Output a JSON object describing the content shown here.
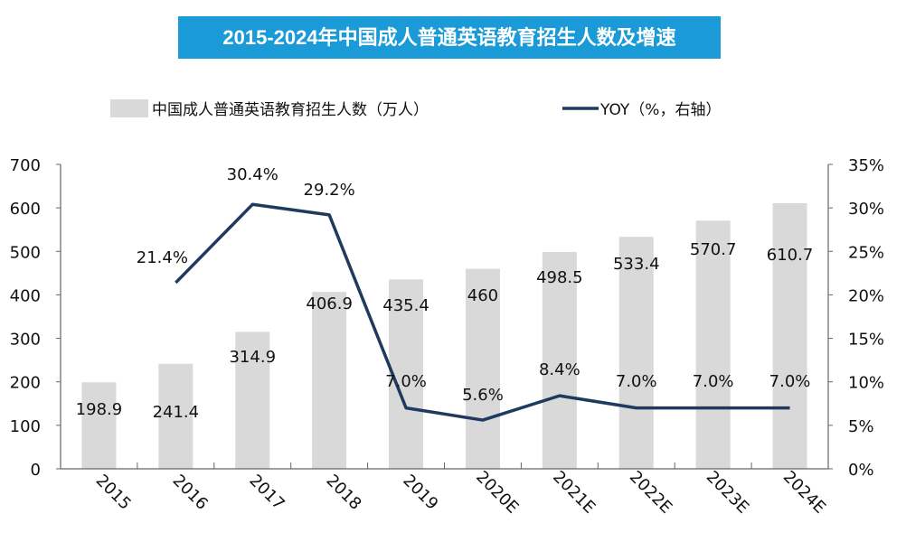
{
  "chart_data": {
    "type": "bar+line",
    "title": "2015-2024年中国成人普通英语教育招生人数及增速",
    "categories": [
      "2015",
      "2016",
      "2017",
      "2018",
      "2019",
      "2020E",
      "2021E",
      "2022E",
      "2023E",
      "2024E"
    ],
    "series": [
      {
        "name": "中国成人普通英语教育招生人数（万人）",
        "type": "bar",
        "axis": "left",
        "values": [
          198.9,
          241.4,
          314.9,
          406.9,
          435.4,
          460,
          498.5,
          533.4,
          570.7,
          610.7
        ],
        "labels": [
          "198.9",
          "241.4",
          "314.9",
          "406.9",
          "435.4",
          "460",
          "498.5",
          "533.4",
          "570.7",
          "610.7"
        ],
        "color": "#d9d9d9"
      },
      {
        "name": "YOY（%，右轴）",
        "type": "line",
        "axis": "right",
        "values": [
          null,
          21.4,
          30.4,
          29.2,
          7.0,
          5.6,
          8.4,
          7.0,
          7.0,
          7.0
        ],
        "labels": [
          null,
          "21.4%",
          "30.4%",
          "29.2%",
          "7.0%",
          "5.6%",
          "8.4%",
          "7.0%",
          "7.0%",
          "7.0%"
        ],
        "color": "#1f3a5f"
      }
    ],
    "ylim_left": [
      0,
      700
    ],
    "yticks_left": [
      "0",
      "100",
      "200",
      "300",
      "400",
      "500",
      "600",
      "700"
    ],
    "ylim_right": [
      0,
      35
    ],
    "yticks_right": [
      "0%",
      "5%",
      "10%",
      "15%",
      "20%",
      "25%",
      "30%",
      "35%"
    ],
    "legend": "top",
    "grid": false
  },
  "colors": {
    "title_bg": "#1a9ad6"
  }
}
